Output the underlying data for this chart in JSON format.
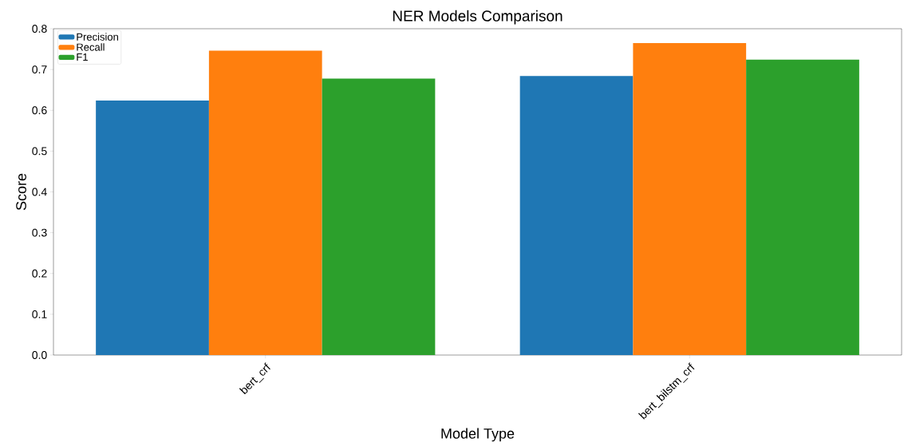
{
  "chart_data": {
    "type": "bar",
    "title": "NER Models Comparison",
    "xlabel": "Model Type",
    "ylabel": "Score",
    "categories": [
      "bert_crf",
      "bert_bilstm_crf"
    ],
    "series": [
      {
        "name": "Precision",
        "color": "#1f77b4",
        "values": [
          0.624,
          0.684
        ]
      },
      {
        "name": "Recall",
        "color": "#ff7f0e",
        "values": [
          0.746,
          0.765
        ]
      },
      {
        "name": "F1",
        "color": "#2ca02c",
        "values": [
          0.678,
          0.724
        ]
      }
    ],
    "ylim": [
      0,
      0.8
    ],
    "yticks": [
      {
        "value": 0,
        "label": "0.0"
      },
      0.1,
      0.2,
      0.3,
      0.4,
      0.5,
      0.6,
      0.7,
      0.8
    ],
    "legend": "top left"
  }
}
